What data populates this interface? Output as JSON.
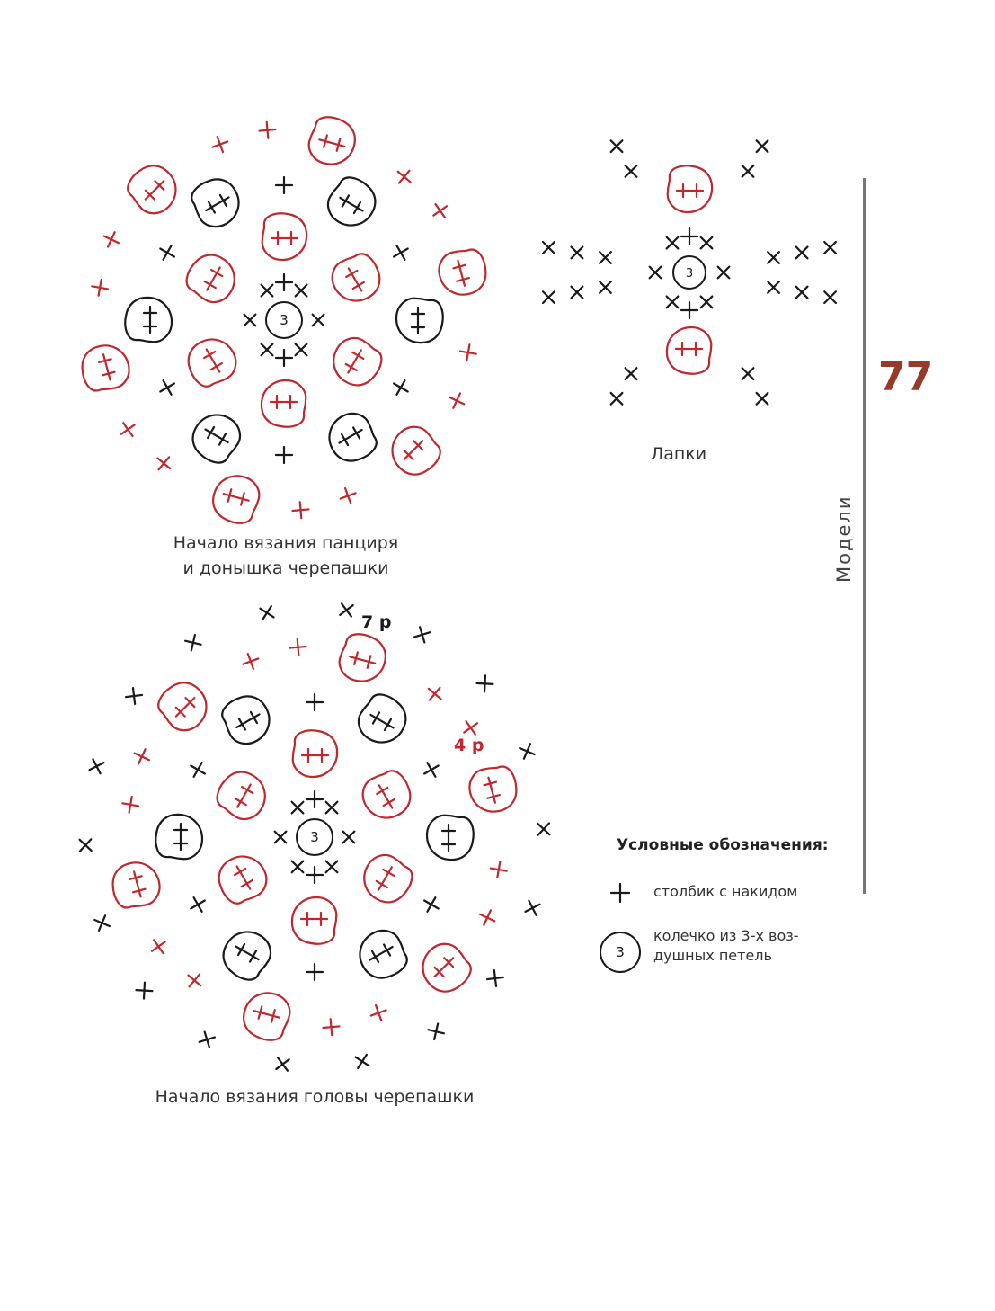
{
  "colors": {
    "red": "#c1272d",
    "black": "#1a1a1a",
    "accent": "#963b2a"
  },
  "page_number": "77",
  "section_label": "Модели",
  "diagrams": [
    {
      "id": "shell",
      "caption_lines": [
        "Начало вязания панциря",
        "и донышка черепашки"
      ],
      "center_label": "3"
    },
    {
      "id": "paws",
      "caption_lines": [
        "Лапки"
      ],
      "center_label": "3"
    },
    {
      "id": "head",
      "caption_lines": [
        "Начало вязания головы черепашки"
      ],
      "center_label": "3",
      "row_labels": [
        {
          "text": "7 р",
          "color": "black"
        },
        {
          "text": "4 р",
          "color": "red"
        }
      ]
    }
  ],
  "legend": {
    "title": "Условные обозначения:",
    "items": [
      {
        "symbol": "plus-icon",
        "text": "столбик с накидом"
      },
      {
        "symbol": "ring-icon",
        "symbol_label": "3",
        "text_lines": [
          "колечко из 3-х воз-",
          "душных петель"
        ]
      }
    ]
  }
}
